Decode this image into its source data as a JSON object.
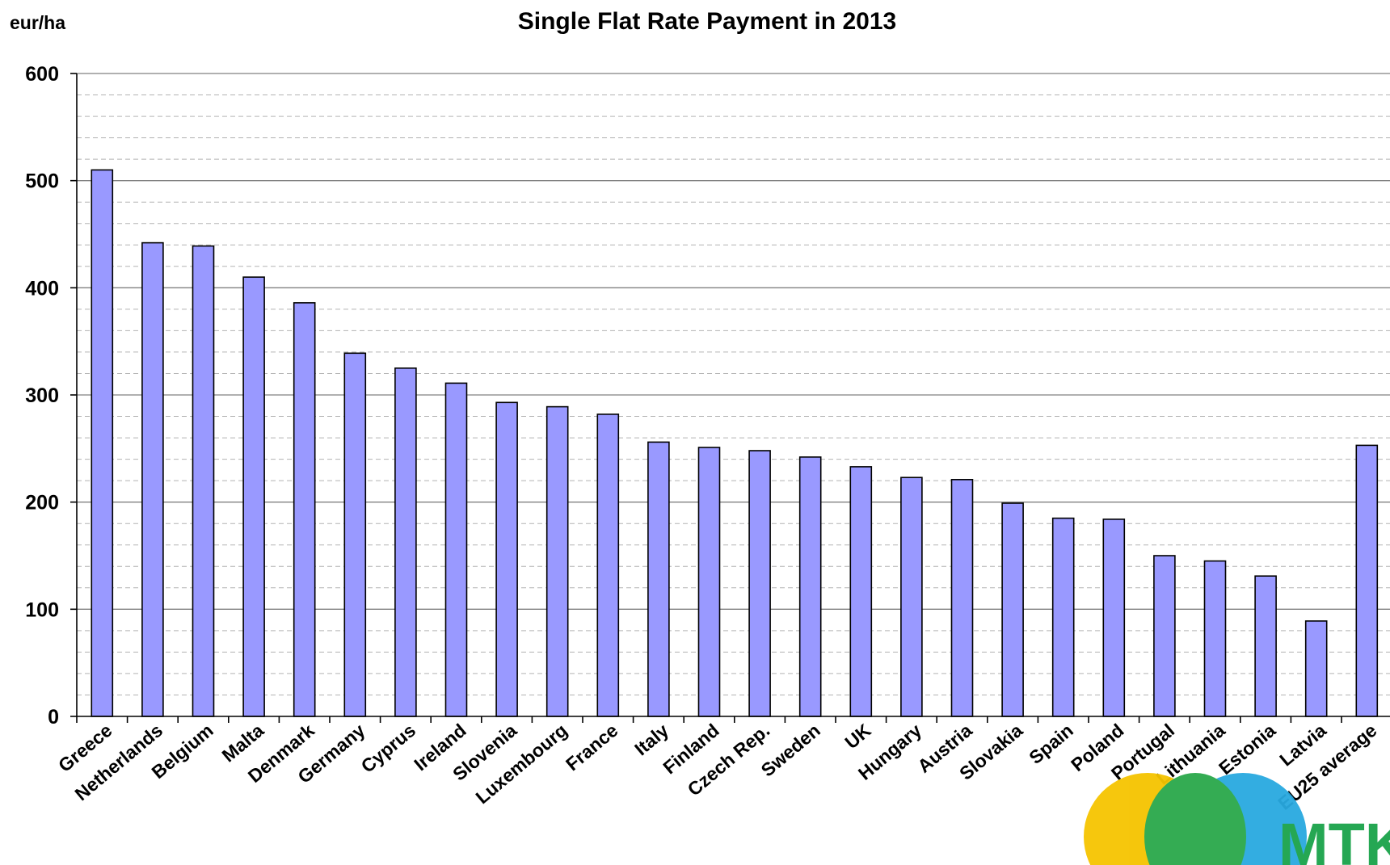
{
  "chart_data": {
    "type": "bar",
    "title": "Single Flat Rate Payment in 2013",
    "ylabel": "eur/ha",
    "xlabel": "",
    "ylim": [
      0,
      600
    ],
    "yticks": [
      0,
      100,
      200,
      300,
      400,
      500,
      600
    ],
    "grid": true,
    "categories": [
      "Greece",
      "Netherlands",
      "Belgium",
      "Malta",
      "Denmark",
      "Germany",
      "Cyprus",
      "Ireland",
      "Slovenia",
      "Luxembourg",
      "France",
      "Italy",
      "Finland",
      "Czech Rep.",
      "Sweden",
      "UK",
      "Hungary",
      "Austria",
      "Slovakia",
      "Spain",
      "Poland",
      "Portugal",
      "Lithuania",
      "Estonia",
      "Latvia",
      "EU25 average"
    ],
    "values": [
      510,
      442,
      439,
      410,
      386,
      339,
      325,
      311,
      293,
      289,
      282,
      256,
      251,
      248,
      242,
      233,
      223,
      221,
      199,
      185,
      184,
      150,
      145,
      131,
      89,
      253
    ],
    "colors": {
      "bar": "#9999ff",
      "bar_stroke": "#000000",
      "grid_major": "#808080",
      "grid_minor": "#b3b3b3"
    }
  },
  "logo": {
    "text": "MTK",
    "colors": {
      "yellow": "#f5c400",
      "green": "#2aa84a",
      "blue": "#29a9e0",
      "text": "#1aa34a"
    }
  }
}
